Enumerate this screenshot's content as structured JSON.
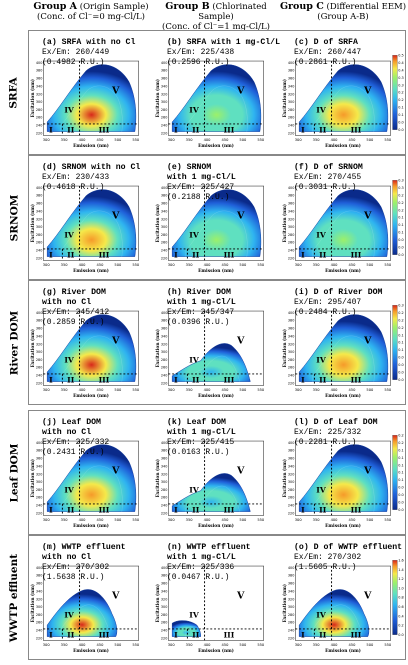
{
  "columns": [
    {
      "title": "Group A",
      "sub1": "(Origin Sample)",
      "sub2": "(Conc. of Cl⁻=0 mg-Cl/L)"
    },
    {
      "title": "Group B",
      "sub1": "(Chlorinated Sample)",
      "sub2": "(Conc. of Cl⁻=1 mg-Cl/L)"
    },
    {
      "title": "Group C",
      "sub1": "(Differential EEM)",
      "sub2": "(Group A-B)"
    }
  ],
  "rows": [
    {
      "label": "SRFA",
      "panels": [
        {
          "l1": "(a) SRFA with no Cl",
          "l2": "",
          "exem": "Ex/Em: 260/449",
          "ru": "(0.4982 R.U.)",
          "shape": "full",
          "hot": 0.9
        },
        {
          "l1": "(b) SRFA with 1 mg-Cl/L",
          "l2": "",
          "exem": "Ex/Em: 225/438",
          "ru": "(0.2596 R.U.)",
          "shape": "full",
          "hot": 0.5
        },
        {
          "l1": "(c) D of SRFA",
          "l2": "",
          "exem": "Ex/Em: 260/447",
          "ru": "(0.2861 R.U.)",
          "shape": "full",
          "hot": 0.55
        }
      ],
      "bar": [
        "0.53",
        "0.47",
        "0.42",
        "0.37",
        "0.31",
        "0.26",
        "0.21",
        "0.16",
        "0.10",
        "0.05",
        "0.0"
      ]
    },
    {
      "label": "SRNOM",
      "panels": [
        {
          "l1": "(d) SRNOM with no Cl",
          "l2": "",
          "exem": "Ex/Em: 230/433",
          "ru": "(0.4618 R.U.)",
          "shape": "full",
          "hot": 0.6
        },
        {
          "l1": "(e) SRNOM",
          "l2": "with 1 mg-Cl/L",
          "exem": "Ex/Em: 225/427",
          "ru": "(0.2188 R.U.)",
          "shape": "full",
          "hot": 0.4
        },
        {
          "l1": "(f) D of SRNOM",
          "l2": "",
          "exem": "Ex/Em: 270/455",
          "ru": "(0.3031 R.U.)",
          "shape": "full",
          "hot": 0.5
        }
      ],
      "bar": [
        "0.33",
        "0.30",
        "0.27",
        "0.23",
        "0.20",
        "0.17",
        "0.13",
        "0.10",
        "0.067",
        "0.033",
        "0.0"
      ]
    },
    {
      "label": "River DOM",
      "panels": [
        {
          "l1": "(g) River DOM",
          "l2": "with no Cl",
          "exem": "Ex/Em: 245/412",
          "ru": "(0.2859 R.U.)",
          "shape": "full",
          "hot": 0.95
        },
        {
          "l1": "(h) River DOM",
          "l2": "with 1 mg-Cl/L",
          "exem": "Ex/Em: 245/347",
          "ru": "(0.0396 R.U.)",
          "shape": "sparse",
          "hot": 0.1
        },
        {
          "l1": "(i) D of River DOM",
          "l2": "",
          "exem": "Ex/Em: 295/407",
          "ru": "(0.2484 R.U.)",
          "shape": "full",
          "hot": 0.8
        }
      ],
      "bar": [
        "0.30",
        "0.27",
        "0.24",
        "0.21",
        "0.18",
        "0.15",
        "0.12",
        "0.09",
        "0.06",
        "0.03",
        "0.0"
      ]
    },
    {
      "label": "Leaf DOM",
      "panels": [
        {
          "l1": "(j) Leaf DOM",
          "l2": "with no Cl",
          "exem": "Ex/Em: 225/332",
          "ru": "(0.2431 R.U.)",
          "shape": "full",
          "hot": 0.7
        },
        {
          "l1": "(k) Leaf DOM",
          "l2": "with 1 mg-Cl/L",
          "exem": "Ex/Em: 225/415",
          "ru": "(0.0163 R.U.)",
          "shape": "sparse",
          "hot": 0.05
        },
        {
          "l1": "(l) D of Leaf DOM",
          "l2": "",
          "exem": "Ex/Em: 225/332",
          "ru": "(0.2281 R.U.)",
          "shape": "full",
          "hot": 0.7
        }
      ],
      "bar": [
        "0.24",
        "0.22",
        "0.19",
        "0.17",
        "0.14",
        "0.12",
        "0.10",
        "0.07",
        "0.048",
        "0.024",
        "0.0"
      ]
    },
    {
      "label": "WWTP effluent",
      "panels": [
        {
          "l1": "(m) WWTP effluent",
          "l2": "with no Cl",
          "exem": "Ex/Em: 270/302",
          "ru": "(1.5638 R.U.)",
          "shape": "low",
          "hot": 0.95
        },
        {
          "l1": "(n) WWTP effluent",
          "l2": "with 1 mg-Cl/L",
          "exem": "Ex/Em: 225/336",
          "ru": "(0.0467 R.U.)",
          "shape": "tiny",
          "hot": 0.1
        },
        {
          "l1": "(o) D of WWTP effluent",
          "l2": "",
          "exem": "Ex/Em: 270/302",
          "ru": "(1.5605 R.U.)",
          "shape": "low",
          "hot": 0.95
        }
      ],
      "bar": [
        "1.6",
        "1.4",
        "1.2",
        "1.0",
        "0.80",
        "0.60",
        "0.40",
        "0.20",
        "0.0"
      ]
    }
  ],
  "axes": {
    "xlabel": "Emission (nm)",
    "ylabel": "Excitation (nm)",
    "xticks": [
      "300",
      "350",
      "400",
      "450",
      "500",
      "550"
    ],
    "yticks": [
      "220",
      "240",
      "260",
      "280",
      "300",
      "320",
      "340",
      "360",
      "380",
      "400"
    ]
  },
  "regions": [
    "I",
    "II",
    "III",
    "IV",
    "V"
  ],
  "colors": {
    "bg": "#ffffff",
    "c0": "#0a2a8a",
    "c1": "#1f5fd8",
    "c2": "#2fb4f0",
    "c3": "#5fe0c0",
    "c4": "#9cf06a",
    "c5": "#f5e94a",
    "c6": "#f59a2a",
    "c7": "#d8281a"
  }
}
